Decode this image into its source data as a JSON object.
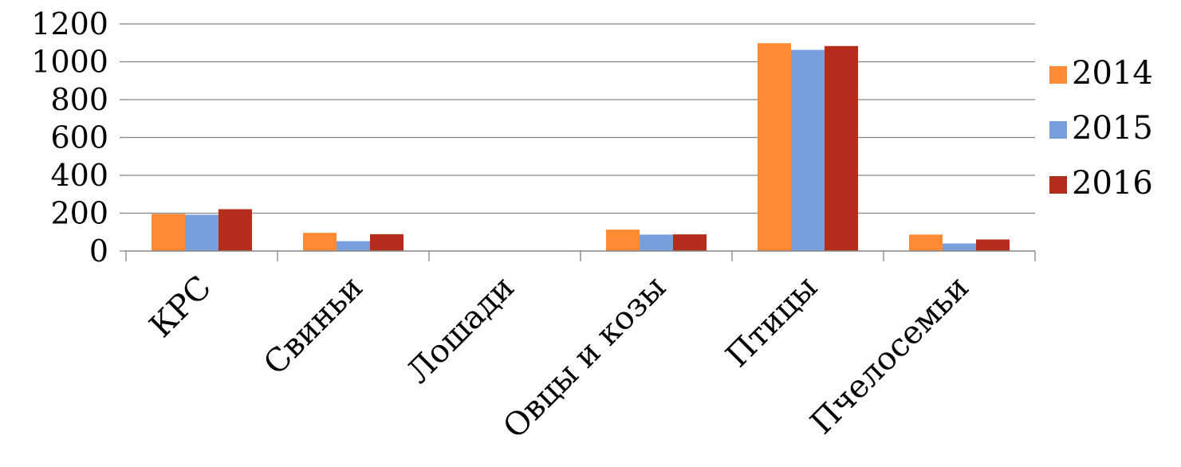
{
  "chart_data": {
    "type": "bar",
    "title": "",
    "xlabel": "",
    "ylabel": "",
    "categories": [
      "КРС",
      "Свиньи",
      "Лошади",
      "Овцы и козы",
      "Птицы",
      "Пчелосемьи"
    ],
    "series": [
      {
        "name": "2014",
        "color": "#FF8A33",
        "values": [
          196,
          96,
          2,
          113,
          1098,
          87
        ]
      },
      {
        "name": "2015",
        "color": "#789FDB",
        "values": [
          192,
          52,
          2,
          87,
          1063,
          40
        ]
      },
      {
        "name": "2016",
        "color": "#B42D1A",
        "values": [
          221,
          89,
          2,
          88,
          1083,
          61
        ]
      }
    ],
    "ylim": [
      0,
      1200
    ],
    "yticks": [
      0,
      200,
      400,
      600,
      800,
      1000,
      1200
    ],
    "grid": true,
    "legend_position": "right"
  }
}
